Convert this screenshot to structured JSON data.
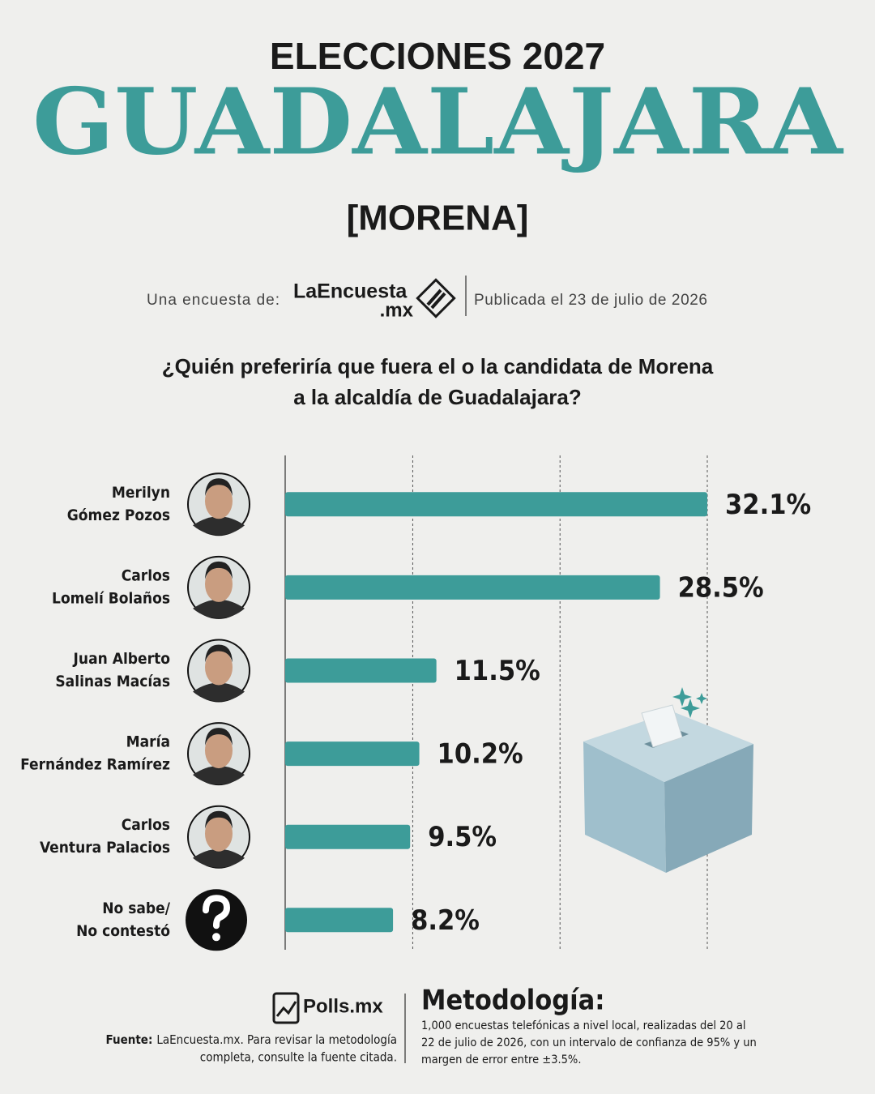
{
  "header": {
    "title": "ELECCIONES 2027",
    "city": "GUADALAJARA",
    "party": "[MORENA]",
    "source_prefix": "Una encuesta de:",
    "logo": [
      "LaEncuesta",
      ".mx"
    ],
    "published": "Publicada el 23 de julio de 2026"
  },
  "chart_data": {
    "type": "bar",
    "orientation": "horizontal",
    "title": [
      "¿Quién preferiría que fuera el o la candidata de Morena",
      "a la alcaldía de Guadalajara?"
    ],
    "categories": [
      [
        "Merilyn",
        "Gómez Pozos"
      ],
      [
        "Carlos",
        "Lomelí Bolaños"
      ],
      [
        "Juan Alberto",
        "Salinas Macías"
      ],
      [
        "María",
        "Fernández Ramírez"
      ],
      [
        "Carlos",
        "Ventura Palacios"
      ],
      [
        "No sabe/",
        "No contestó"
      ]
    ],
    "values": [
      32.1,
      28.5,
      11.5,
      10.2,
      9.5,
      8.2
    ],
    "value_labels": [
      "32.1%",
      "28.5%",
      "11.5%",
      "10.2%",
      "9.5%",
      "8.2%"
    ],
    "color": "#3d9c99",
    "xlim": [
      0,
      32.1
    ],
    "grid_lines": [
      9.7,
      20.9,
      32.1
    ]
  },
  "footer": {
    "brand": "Polls.mx",
    "source_label": "Fuente:",
    "source_text": [
      "LaEncuesta.mx. Para revisar la metodología",
      "completa, consulte la fuente citada."
    ],
    "methodology_title": "Metodología:",
    "methodology": [
      "1,000 encuestas telefónicas a nivel local, realizadas del 20 al",
      "22 de julio de 2026, con un intervalo de confianza de 95% y un",
      "margen de error entre ±3.5%."
    ]
  }
}
